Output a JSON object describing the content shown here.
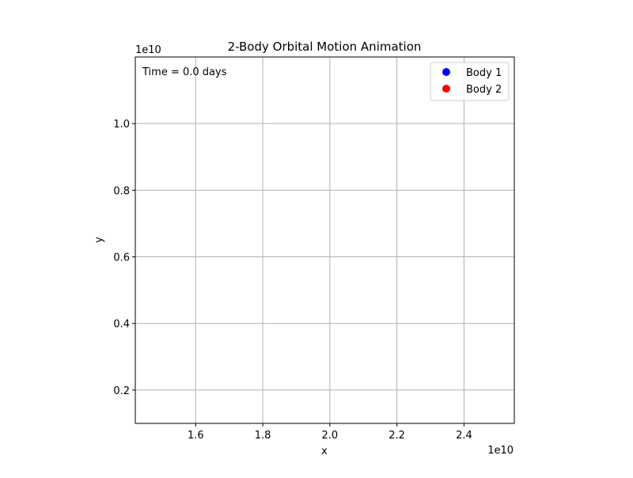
{
  "chart_data": {
    "type": "scatter",
    "title": "2-Body Orbital Motion Animation",
    "xlabel": "x",
    "ylabel": "y",
    "x_offset_text": "1e10",
    "y_offset_text": "1e10",
    "xlim": [
      1.42,
      2.55
    ],
    "ylim": [
      0.1,
      1.2
    ],
    "xticks": [
      1.6,
      1.8,
      2.0,
      2.2,
      2.4
    ],
    "xtick_labels": [
      "1.6",
      "1.8",
      "2.0",
      "2.2",
      "2.4"
    ],
    "yticks": [
      0.2,
      0.4,
      0.6,
      0.8,
      1.0
    ],
    "ytick_labels": [
      "0.2",
      "0.4",
      "0.6",
      "0.8",
      "1.0"
    ],
    "grid": true,
    "legend_position": "top-right",
    "annotation": "Time = 0.0 days",
    "series": [
      {
        "name": "Body 1",
        "color": "#0000ff",
        "points": []
      },
      {
        "name": "Body 2",
        "color": "#ff0000",
        "points": []
      }
    ]
  }
}
